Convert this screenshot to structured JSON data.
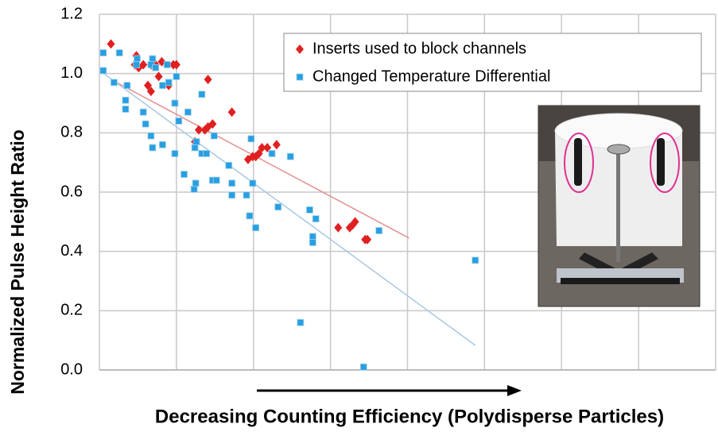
{
  "chart_data": {
    "type": "scatter",
    "y_label": "Normalized Pulse Height Ratio",
    "x_label": "Decreasing Counting Efficiency (Polydisperse Particles)",
    "xlim": [
      0,
      8
    ],
    "xticks": [
      0,
      1,
      2,
      3,
      4,
      5,
      6,
      7,
      8
    ],
    "ylim": [
      0,
      1.2
    ],
    "yticks": [
      {
        "value": 0,
        "label": "0.0"
      },
      0.2,
      0.4,
      0.6,
      0.8,
      {
        "value": 1,
        "label": "1.0"
      },
      1.2
    ],
    "grid": true,
    "legend": "upper right",
    "series": [
      {
        "name": "Inserts used to block channels",
        "color": "#e02020",
        "marker": "diamond",
        "trend_color": "#e09090",
        "x": [
          0.15,
          0.48,
          0.46,
          0.51,
          0.57,
          0.67,
          0.73,
          0.81,
          0.96,
          1.0,
          0.63,
          0.67,
          0.77,
          0.9,
          1.41,
          1.72,
          1.24,
          1.29,
          1.37,
          1.41,
          1.47,
          1.93,
          1.99,
          2.03,
          2.07,
          2.11,
          2.18,
          2.3,
          3.1,
          3.25,
          3.29,
          3.32,
          3.45,
          3.48
        ],
        "values": [
          1.1,
          1.06,
          1.03,
          1.02,
          1.03,
          1.03,
          1.03,
          1.04,
          1.03,
          1.03,
          0.96,
          0.94,
          0.99,
          0.96,
          0.98,
          0.87,
          0.77,
          0.81,
          0.81,
          0.82,
          0.83,
          0.71,
          0.72,
          0.72,
          0.73,
          0.75,
          0.75,
          0.76,
          0.48,
          0.48,
          0.49,
          0.5,
          0.44,
          0.44
        ],
        "trend_x": [
          0.15,
          4.02
        ],
        "trend_y": [
          0.98,
          0.445
        ]
      },
      {
        "name": "Changed Temperature Differential",
        "color": "#2a9fe0",
        "marker": "square",
        "trend_color": "#a8c8e4",
        "x": [
          0.05,
          0.05,
          0.26,
          0.19,
          0.36,
          0.34,
          0.34,
          0.49,
          0.48,
          0.69,
          0.67,
          0.73,
          0.88,
          1.0,
          0.82,
          0.9,
          0.57,
          0.6,
          0.67,
          0.69,
          0.82,
          0.98,
          1.03,
          0.98,
          1.15,
          1.1,
          1.24,
          1.26,
          1.23,
          1.25,
          1.33,
          1.33,
          1.39,
          1.49,
          1.47,
          1.52,
          1.68,
          1.72,
          1.72,
          1.91,
          1.95,
          1.97,
          1.99,
          2.03,
          2.24,
          2.32,
          2.48,
          2.61,
          2.73,
          2.77,
          2.77,
          2.81,
          3.43,
          3.63,
          4.88
        ],
        "values": [
          1.07,
          1.01,
          1.07,
          0.97,
          0.96,
          0.91,
          0.88,
          1.05,
          1.03,
          1.05,
          1.03,
          1.02,
          1.03,
          0.99,
          0.96,
          0.97,
          0.87,
          0.83,
          0.79,
          0.75,
          0.76,
          0.9,
          0.84,
          0.73,
          0.87,
          0.66,
          0.75,
          0.77,
          0.61,
          0.63,
          0.73,
          0.93,
          0.73,
          0.79,
          0.64,
          0.64,
          0.69,
          0.63,
          0.59,
          0.59,
          0.52,
          0.78,
          0.63,
          0.48,
          0.73,
          0.55,
          0.72,
          0.16,
          0.54,
          0.45,
          0.43,
          0.51,
          0.01,
          0.47,
          0.37
        ],
        "trend_x": [
          0.02,
          4.88
        ],
        "trend_y": [
          1.007,
          0.083
        ]
      }
    ]
  }
}
